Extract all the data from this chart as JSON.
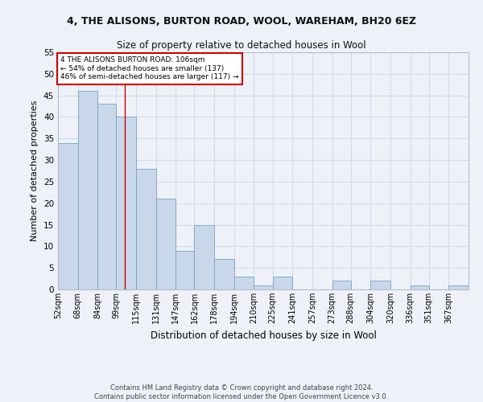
{
  "title1": "4, THE ALISONS, BURTON ROAD, WOOL, WAREHAM, BH20 6EZ",
  "title2": "Size of property relative to detached houses in Wool",
  "xlabel": "Distribution of detached houses by size in Wool",
  "ylabel": "Number of detached properties",
  "categories": [
    "52sqm",
    "68sqm",
    "84sqm",
    "99sqm",
    "115sqm",
    "131sqm",
    "147sqm",
    "162sqm",
    "178sqm",
    "194sqm",
    "210sqm",
    "225sqm",
    "241sqm",
    "257sqm",
    "273sqm",
    "288sqm",
    "304sqm",
    "320sqm",
    "336sqm",
    "351sqm",
    "367sqm"
  ],
  "values": [
    34,
    46,
    43,
    40,
    28,
    21,
    9,
    15,
    7,
    3,
    1,
    3,
    0,
    0,
    2,
    0,
    2,
    0,
    1,
    0,
    1
  ],
  "bar_color": "#c8d8ea",
  "bar_edge_color": "#7aa0c0",
  "bin_edges": [
    52,
    68,
    84,
    99,
    115,
    131,
    147,
    162,
    178,
    194,
    210,
    225,
    241,
    257,
    273,
    288,
    304,
    320,
    336,
    351,
    367,
    383
  ],
  "property_size": 106,
  "annotation_text_line1": "4 THE ALISONS BURTON ROAD: 106sqm",
  "annotation_text_line2": "← 54% of detached houses are smaller (137)",
  "annotation_text_line3": "46% of semi-detached houses are larger (117) →",
  "annotation_box_color": "#ffffff",
  "annotation_box_edge": "#cc0000",
  "vline_color": "#cc0000",
  "grid_color": "#d0dcea",
  "ylim": [
    0,
    55
  ],
  "yticks": [
    0,
    5,
    10,
    15,
    20,
    25,
    30,
    35,
    40,
    45,
    50,
    55
  ],
  "footer1": "Contains HM Land Registry data © Crown copyright and database right 2024.",
  "footer2": "Contains public sector information licensed under the Open Government Licence v3.0.",
  "background_color": "#eef2f8"
}
